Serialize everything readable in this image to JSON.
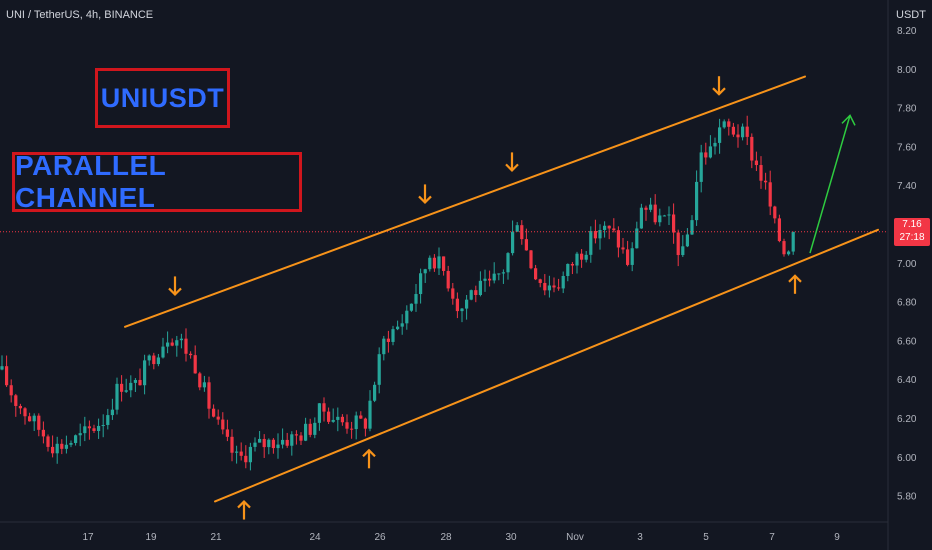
{
  "header": {
    "symbol": "UNI / TetherUS, 4h, BINANCE",
    "currency": "USDT"
  },
  "annotations": {
    "title_box": "UNIUSDT",
    "pattern_box": "PARALLEL CHANNEL"
  },
  "price_tag": {
    "price": "7.16",
    "countdown": "27:18"
  },
  "colors": {
    "background": "#131722",
    "up": "#26a69a",
    "down": "#f23645",
    "channel": "#f7931a",
    "projection": "#2ecc40",
    "box_border": "#d0161d",
    "box_text": "#2f6bff"
  },
  "chart_data": {
    "type": "candlestick",
    "y_ticks": [
      "8.20",
      "8.00",
      "7.80",
      "7.60",
      "7.40",
      "7.20",
      "7.00",
      "6.80",
      "6.60",
      "6.40",
      "6.20",
      "6.00",
      "5.80"
    ],
    "x_ticks": [
      "17",
      "19",
      "21",
      "24",
      "26",
      "28",
      "30",
      "Nov",
      "3",
      "5",
      "7",
      "9"
    ],
    "ylim": [
      5.72,
      8.22
    ],
    "current_price": 7.16,
    "channel": {
      "upper": [
        [
          125,
          6.67
        ],
        [
          805,
          7.96
        ]
      ],
      "lower": [
        [
          215,
          5.77
        ],
        [
          878,
          7.17
        ]
      ]
    },
    "projection_arrow": [
      [
        810,
        7.05
      ],
      [
        850,
        7.76
      ]
    ],
    "top_arrows_x": [
      175,
      425,
      512,
      719
    ],
    "bottom_arrows_x": [
      244,
      369,
      795
    ],
    "candles_x": [],
    "candles_o": [],
    "candles_h": [],
    "candles_l": [],
    "candles_c": []
  }
}
